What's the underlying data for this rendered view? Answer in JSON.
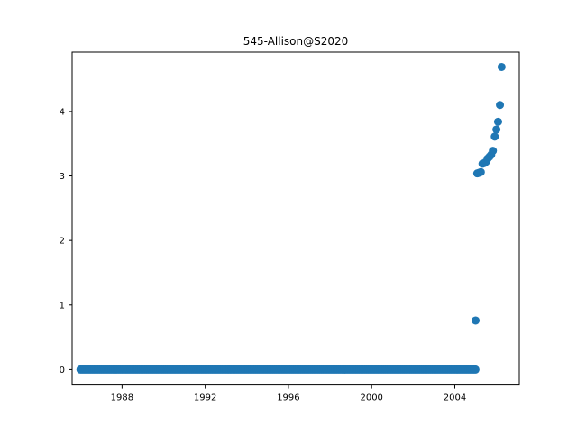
{
  "chart_data": {
    "type": "scatter",
    "title": "545-Allison@S2020",
    "xlabel": "",
    "ylabel": "",
    "xlim": [
      1985.6,
      2007.1
    ],
    "ylim": [
      -0.24,
      4.92
    ],
    "x_ticks": [
      1988,
      1992,
      1996,
      2000,
      2004
    ],
    "x_tick_labels": [
      "1988",
      "1992",
      "1996",
      "2000",
      "2004"
    ],
    "y_ticks": [
      0,
      1,
      2,
      3,
      4
    ],
    "y_tick_labels": [
      "0",
      "1",
      "2",
      "3",
      "4"
    ],
    "grid": false,
    "marker_color": "#1f77b4",
    "zero_run": {
      "start": 1986.0,
      "end": 2005.0,
      "step": 0.0833,
      "y": 0
    },
    "points": [
      {
        "x": 2005.0,
        "y": 0.76
      },
      {
        "x": 2005.08,
        "y": 3.04
      },
      {
        "x": 2005.17,
        "y": 3.05
      },
      {
        "x": 2005.25,
        "y": 3.06
      },
      {
        "x": 2005.33,
        "y": 3.19
      },
      {
        "x": 2005.42,
        "y": 3.2
      },
      {
        "x": 2005.5,
        "y": 3.22
      },
      {
        "x": 2005.58,
        "y": 3.27
      },
      {
        "x": 2005.67,
        "y": 3.3
      },
      {
        "x": 2005.75,
        "y": 3.33
      },
      {
        "x": 2005.83,
        "y": 3.39
      },
      {
        "x": 2005.92,
        "y": 3.61
      },
      {
        "x": 2006.0,
        "y": 3.72
      },
      {
        "x": 2006.08,
        "y": 3.84
      },
      {
        "x": 2006.17,
        "y": 4.1
      },
      {
        "x": 2006.25,
        "y": 4.69
      }
    ]
  }
}
